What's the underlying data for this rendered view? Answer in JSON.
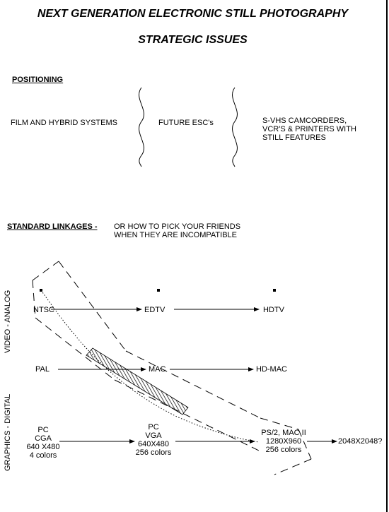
{
  "title": "NEXT GENERATION ELECTRONIC STILL PHOTOGRAPHY",
  "subtitle": "STRATEGIC ISSUES",
  "positioning": {
    "heading": "POSITIONING",
    "items": [
      "FILM AND HYBRID SYSTEMS",
      "FUTURE ESC's",
      "S-VHS CAMCORDERS,\nVCR'S & PRINTERS WITH\nSTILL FEATURES"
    ]
  },
  "linkages": {
    "heading": "STANDARD LINKAGES -",
    "subtitle": "OR HOW TO PICK YOUR FRIENDS\nWHEN THEY ARE INCOMPATIBLE"
  },
  "axis": {
    "video": "VIDEO - ANALOG",
    "graphics": "GRAPHICS - DIGITAL"
  },
  "rows": {
    "ntsc": "NTSC",
    "edtv": "EDTV",
    "hdtv": "HDTV",
    "pal": "PAL",
    "mac": "MAC",
    "hdmac": "HD-MAC",
    "pc_cga": "PC\nCGA\n640 X480\n4 colors",
    "pc_vga": "PC\nVGA\n640X480\n256 colors",
    "ps2": "PS/2, MAC II\n1280X960\n256 colors",
    "res2048": "2048X2048?"
  }
}
